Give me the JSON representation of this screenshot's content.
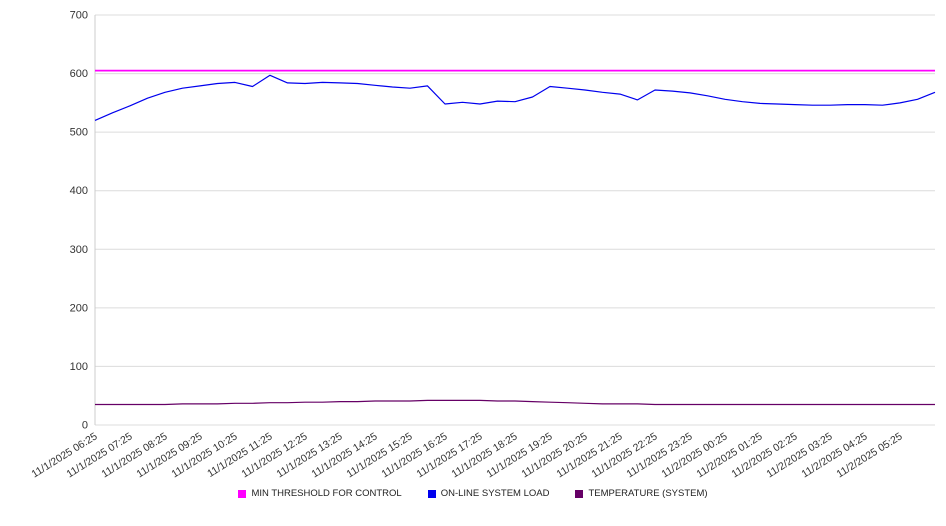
{
  "chart_data": {
    "type": "line",
    "title": "",
    "xlabel": "",
    "ylabel": "",
    "ylim": [
      0,
      700
    ],
    "y_ticks": [
      0,
      100,
      200,
      300,
      400,
      500,
      600,
      700
    ],
    "grid": "horizontal",
    "legend_position": "bottom",
    "x_tick_labels": [
      "11/1/2025 06:25",
      "11/1/2025 07:25",
      "11/1/2025 08:25",
      "11/1/2025 09:25",
      "11/1/2025 10:25",
      "11/1/2025 11:25",
      "11/1/2025 12:25",
      "11/1/2025 13:25",
      "11/1/2025 14:25",
      "11/1/2025 15:25",
      "11/1/2025 16:25",
      "11/1/2025 17:25",
      "11/1/2025 18:25",
      "11/1/2025 19:25",
      "11/1/2025 20:25",
      "11/1/2025 21:25",
      "11/1/2025 22:25",
      "11/1/2025 23:25",
      "11/2/2025 00:25",
      "11/2/2025 01:25",
      "11/2/2025 02:25",
      "11/2/2025 03:25",
      "11/2/2025 04:25",
      "11/2/2025 05:25"
    ],
    "series": [
      {
        "name": "MIN THRESHOLD FOR CONTROL",
        "color": "#ff00ff",
        "values": [
          605,
          605
        ]
      },
      {
        "name": "ON-LINE SYSTEM LOAD",
        "color": "#0000ee",
        "values": [
          520,
          533,
          545,
          558,
          568,
          575,
          579,
          583,
          585,
          578,
          597,
          584,
          583,
          585,
          584,
          583,
          580,
          577,
          575,
          579,
          548,
          551,
          548,
          553,
          552,
          560,
          578,
          575,
          572,
          568,
          565,
          555,
          572,
          570,
          567,
          562,
          556,
          552,
          549,
          548,
          547,
          546,
          546,
          547,
          547,
          546,
          550,
          556,
          568
        ]
      },
      {
        "name": "TEMPERATURE (SYSTEM)",
        "color": "#660066",
        "values": [
          35,
          35,
          35,
          35,
          35,
          36,
          36,
          36,
          37,
          37,
          38,
          38,
          39,
          39,
          40,
          40,
          41,
          41,
          41,
          42,
          42,
          42,
          42,
          41,
          41,
          40,
          39,
          38,
          37,
          36,
          36,
          36,
          35,
          35,
          35,
          35,
          35,
          35,
          35,
          35,
          35,
          35,
          35,
          35,
          35,
          35,
          35,
          35,
          35
        ]
      }
    ]
  }
}
